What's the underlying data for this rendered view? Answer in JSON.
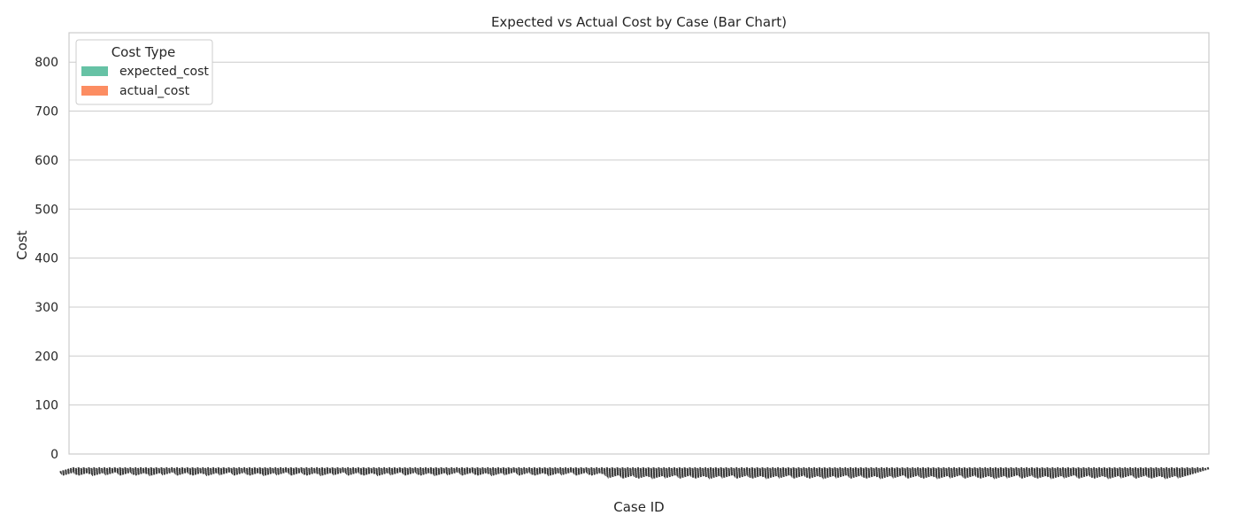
{
  "chart_data": {
    "type": "bar",
    "title": "Expected vs Actual Cost by Case (Bar Chart)",
    "xlabel": "Case ID",
    "ylabel": "Cost",
    "ylim": [
      0,
      860
    ],
    "yticks": [
      "0",
      "100",
      "200",
      "300",
      "400",
      "500",
      "600",
      "700",
      "800"
    ],
    "grid": true,
    "legend": {
      "title": "Cost Type",
      "position": "top-left",
      "entries": [
        {
          "name": "expected_cost",
          "color": "#66c2a5"
        },
        {
          "name": "actual_cost",
          "color": "#fc8d62"
        }
      ]
    },
    "x_tick_labels_note": "Hundreds of overlapping rotated case ID labels; individual labels are illegible.",
    "series": [
      {
        "name": "expected_cost",
        "values": []
      },
      {
        "name": "actual_cost",
        "values": []
      }
    ]
  }
}
